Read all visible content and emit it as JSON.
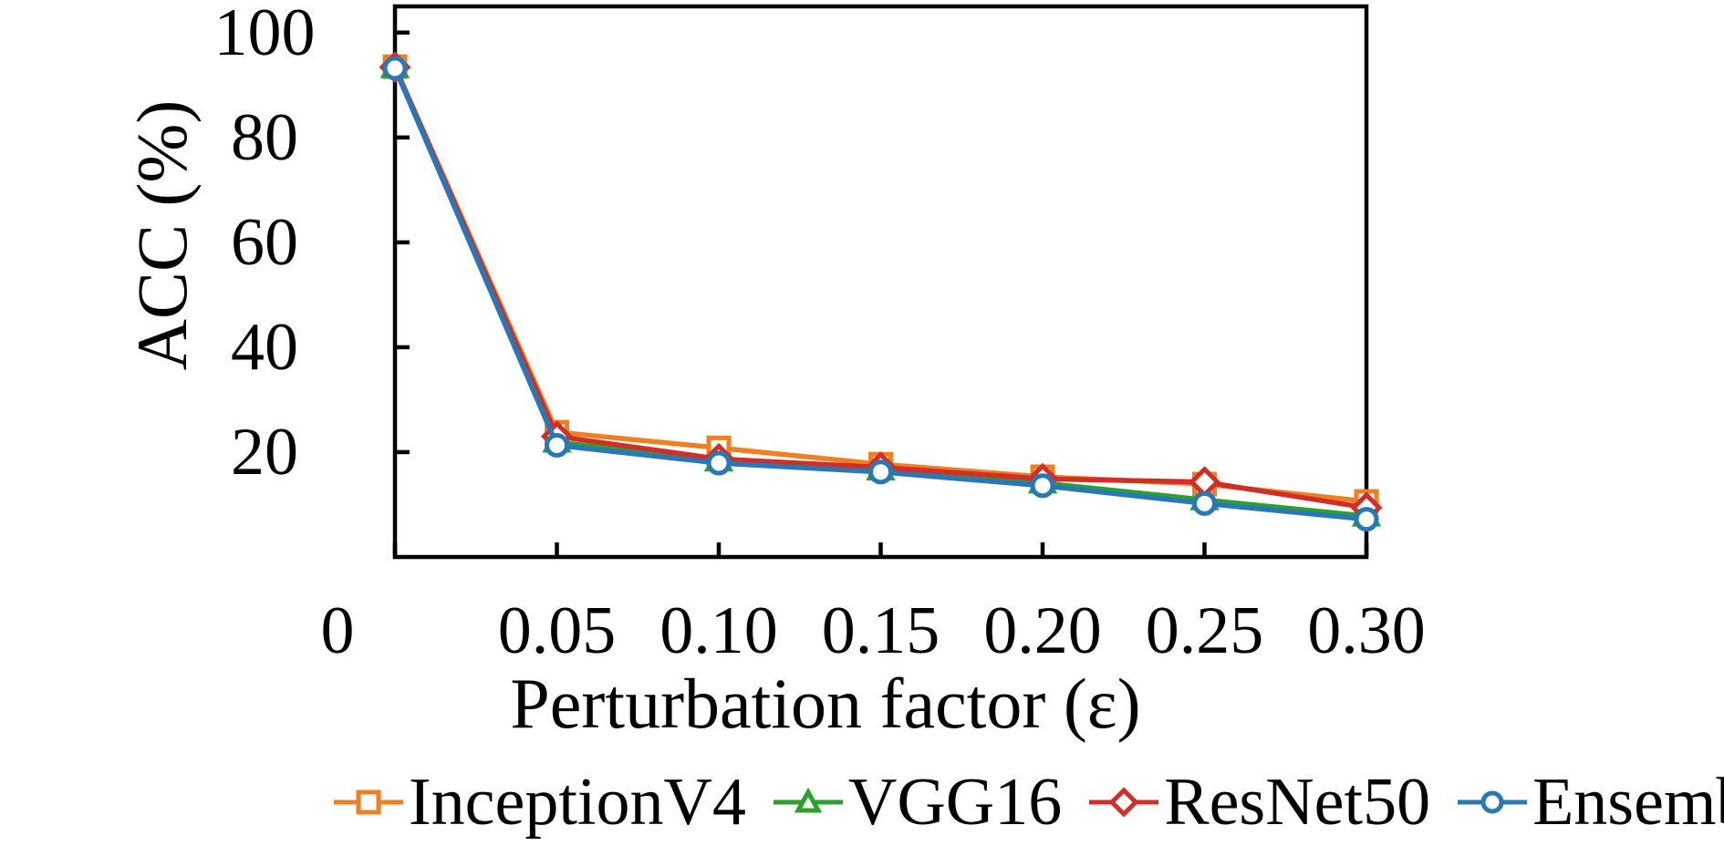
{
  "chart_data": {
    "type": "line",
    "title": "",
    "xlabel": "Perturbation factor (ε)",
    "ylabel": "ACC (%)",
    "x": [
      0,
      0.05,
      0.1,
      0.15,
      0.2,
      0.25,
      0.3
    ],
    "xtick_labels": [
      "0",
      "0.05",
      "0.10",
      "0.15",
      "0.20",
      "0.25",
      "0.30"
    ],
    "ytick_values": [
      20,
      40,
      60,
      80,
      100
    ],
    "ytick_labels": [
      "20",
      "40",
      "60",
      "80",
      "100"
    ],
    "xlim": [
      0,
      0.3
    ],
    "ylim": [
      0,
      105
    ],
    "grid": false,
    "legend_position": "bottom",
    "axis_color": "#000000",
    "series": [
      {
        "name": "InceptionV4",
        "color": "#F07F23",
        "marker": "square",
        "values": [
          93.5,
          23.8,
          20.8,
          17.7,
          15.3,
          13.9,
          10.6
        ]
      },
      {
        "name": "VGG16",
        "color": "#2CA02C",
        "marker": "triangle",
        "values": [
          93.3,
          21.9,
          18.3,
          16.6,
          14.1,
          10.9,
          7.8
        ]
      },
      {
        "name": "ResNet50",
        "color": "#D02F28",
        "marker": "diamond",
        "values": [
          93.4,
          23.0,
          18.7,
          17.1,
          14.9,
          14.3,
          9.4
        ]
      },
      {
        "name": "Ensemble",
        "color": "#2878B8",
        "marker": "circle",
        "values": [
          93.2,
          21.3,
          17.9,
          16.2,
          13.6,
          10.2,
          7.2
        ]
      }
    ]
  }
}
